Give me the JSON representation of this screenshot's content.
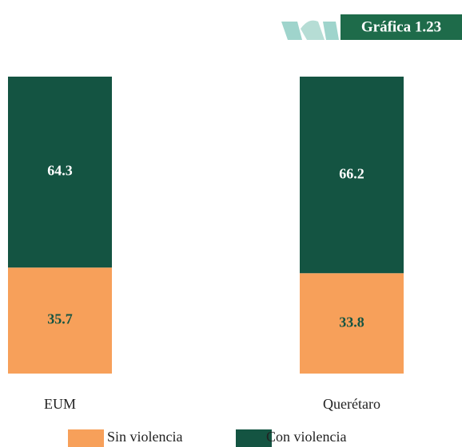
{
  "chart_data": {
    "type": "stacked_bar",
    "title": "Gráfica 1.23",
    "categories": [
      "EUM",
      "Querétaro"
    ],
    "series": [
      {
        "name": "Sin violencia",
        "color": "#f7a05a",
        "values": [
          35.7,
          33.8
        ]
      },
      {
        "name": "Con violencia",
        "color": "#145442",
        "values": [
          64.3,
          66.2
        ]
      }
    ]
  }
}
